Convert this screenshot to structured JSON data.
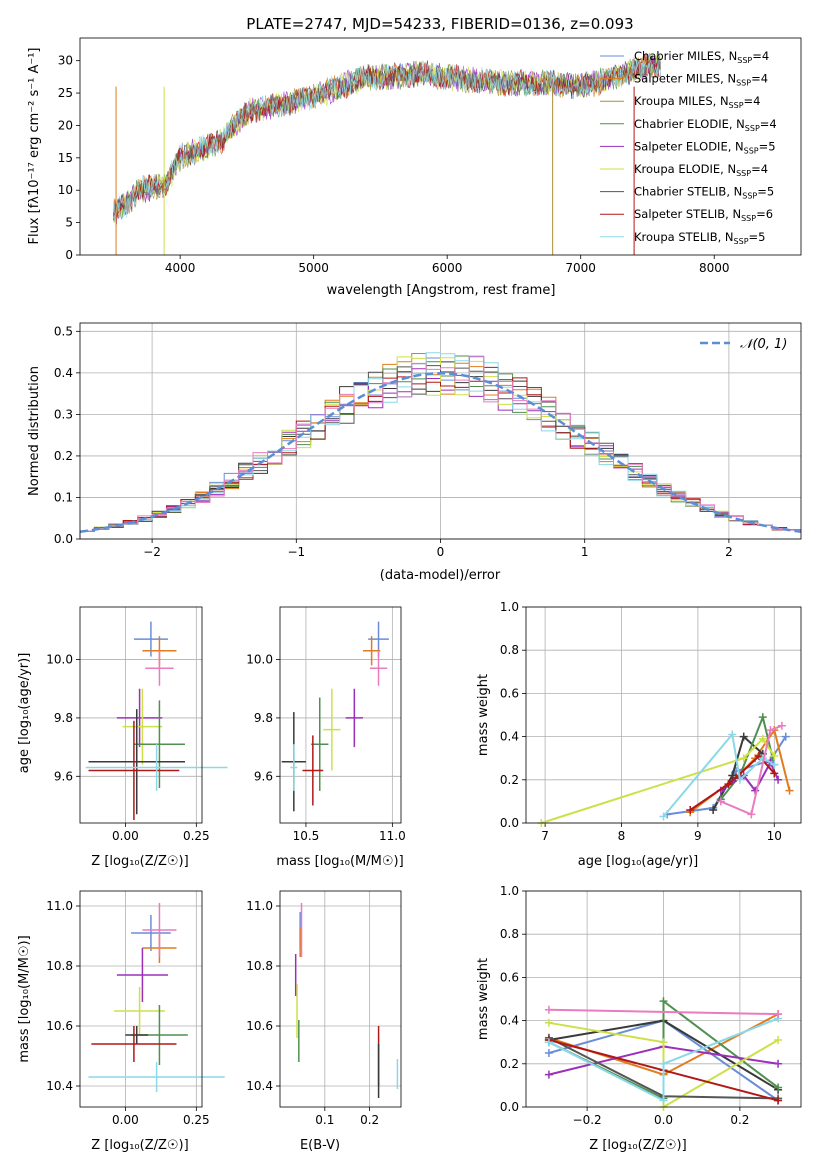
{
  "figure": {
    "title": "PLATE=2747, MJD=54233, FIBERID=0136, z=0.093"
  },
  "colors": [
    "#6a8dd8",
    "#e07b1f",
    "#3a3a3a",
    "#4f8f4f",
    "#9b30b8",
    "#cde04a",
    "#555555",
    "#b01818",
    "#8ad8e8",
    "#e87cbf"
  ],
  "legend_spectrum": [
    {
      "label": "Chabrier MILES, N",
      "sub": "SSP",
      "val": "=4",
      "color": "#6a8dd8"
    },
    {
      "label": "Salpeter MILES, N",
      "sub": "SSP",
      "val": "=4",
      "color": "#e07b1f"
    },
    {
      "label": "Kroupa MILES, N",
      "sub": "SSP",
      "val": "=4",
      "color": "#a89030"
    },
    {
      "label": "Chabrier ELODIE, N",
      "sub": "SSP",
      "val": "=4",
      "color": "#4f8f4f"
    },
    {
      "label": "Salpeter ELODIE, N",
      "sub": "SSP",
      "val": "=5",
      "color": "#9b30b8"
    },
    {
      "label": "Kroupa ELODIE, N",
      "sub": "SSP",
      "val": "=4",
      "color": "#cde04a"
    },
    {
      "label": "Chabrier STELIB, N",
      "sub": "SSP",
      "val": "=5",
      "color": "#555555"
    },
    {
      "label": "Salpeter STELIB, N",
      "sub": "SSP",
      "val": "=6",
      "color": "#b01818"
    },
    {
      "label": "Kroupa STELIB, N",
      "sub": "SSP",
      "val": "=5",
      "color": "#8ad8e8"
    }
  ],
  "chart_data": [
    {
      "id": "spectrum",
      "type": "line",
      "xlabel": "wavelength [Angstrom, rest frame]",
      "ylabel": "Flux [fλ10⁻¹⁷ erg cm⁻² s⁻¹ A⁻¹]",
      "xlim": [
        3250,
        8650
      ],
      "ylim": [
        0,
        33.5
      ],
      "xticks": [
        4000,
        5000,
        6000,
        7000,
        8000
      ],
      "yticks": [
        0,
        5,
        10,
        15,
        20,
        25,
        30
      ],
      "envelope": {
        "x": [
          3500,
          3600,
          3700,
          3800,
          3900,
          4000,
          4100,
          4200,
          4300,
          4400,
          4500,
          4600,
          4800,
          5000,
          5200,
          5400,
          5600,
          5800,
          6000,
          6200,
          6400,
          6600,
          6800,
          7000,
          7200,
          7400,
          7600
        ],
        "y": [
          6.5,
          8.0,
          10.0,
          10.5,
          11.0,
          15.0,
          16.0,
          16.5,
          17.5,
          20.0,
          22.0,
          22.5,
          23.5,
          24.5,
          26.0,
          27.5,
          27.5,
          28.0,
          27.5,
          27.0,
          26.5,
          26.5,
          26.5,
          26.0,
          27.0,
          28.5,
          29.5
        ]
      },
      "model_x_range": [
        3500,
        7600
      ],
      "glitches": [
        {
          "x": 6790,
          "color": "#a89030"
        },
        {
          "x": 7400,
          "color": "#b01818"
        },
        {
          "x": 3520,
          "color": "#e07b1f"
        },
        {
          "x": 3880,
          "color": "#cde04a"
        }
      ]
    },
    {
      "id": "residuals",
      "type": "histogram",
      "xlabel": "(data-model)/error",
      "ylabel": "Normed distribution",
      "xlim": [
        -2.5,
        2.5
      ],
      "ylim": [
        0,
        0.52
      ],
      "xticks": [
        -2,
        -1,
        0,
        1,
        2
      ],
      "yticks": [
        0.0,
        0.1,
        0.2,
        0.3,
        0.4,
        0.5
      ],
      "bins": 50,
      "reference": {
        "label": "𝒩(0, 1)",
        "mean": 0,
        "sigma": 1,
        "color": "#5a8fd8"
      }
    },
    {
      "id": "age-vs-Z",
      "type": "errorbar",
      "xlabel": "Z [log₁₀(Z/Z☉)]",
      "ylabel": "age  [log₁₀(age/yr)]",
      "xlim": [
        -0.16,
        0.27
      ],
      "ylim": [
        9.44,
        10.18
      ],
      "xticks": [
        0.0,
        0.25
      ],
      "yticks": [
        9.6,
        9.8,
        10.0
      ],
      "points": [
        {
          "x": 0.09,
          "y": 10.07,
          "xerr": 0.06,
          "yerr": 0.06,
          "color": "#6a8dd8"
        },
        {
          "x": 0.12,
          "y": 10.03,
          "xerr": 0.06,
          "yerr": 0.05,
          "color": "#e07b1f"
        },
        {
          "x": 0.12,
          "y": 9.97,
          "xerr": 0.05,
          "yerr": 0.06,
          "color": "#e87cbf"
        },
        {
          "x": 0.05,
          "y": 9.8,
          "xerr": 0.08,
          "yerr": 0.1,
          "color": "#9b30b8"
        },
        {
          "x": 0.06,
          "y": 9.77,
          "xerr": 0.07,
          "yerr": 0.13,
          "color": "#cde04a"
        },
        {
          "x": 0.12,
          "y": 9.71,
          "xerr": 0.09,
          "yerr": 0.15,
          "color": "#4f8f4f"
        },
        {
          "x": 0.04,
          "y": 9.65,
          "xerr": 0.17,
          "yerr": 0.18,
          "color": "#3a3a3a"
        },
        {
          "x": 0.03,
          "y": 9.62,
          "xerr": 0.16,
          "yerr": 0.17,
          "color": "#b01818"
        },
        {
          "x": 0.11,
          "y": 9.63,
          "xerr": 0.25,
          "yerr": 0.08,
          "color": "#8ad8e8"
        }
      ]
    },
    {
      "id": "age-vs-mass",
      "type": "errorbar",
      "xlabel": "mass [log₁₀(M/M☉)]",
      "ylabel": "",
      "xlim": [
        10.35,
        11.05
      ],
      "ylim": [
        9.44,
        10.18
      ],
      "xticks": [
        10.5,
        11.0
      ],
      "yticks": [
        9.6,
        9.8,
        10.0
      ],
      "points": [
        {
          "x": 10.92,
          "y": 10.07,
          "xerr": 0.06,
          "yerr": 0.06,
          "color": "#6a8dd8"
        },
        {
          "x": 10.88,
          "y": 10.03,
          "xerr": 0.05,
          "yerr": 0.05,
          "color": "#e07b1f"
        },
        {
          "x": 10.92,
          "y": 9.97,
          "xerr": 0.05,
          "yerr": 0.06,
          "color": "#e87cbf"
        },
        {
          "x": 10.78,
          "y": 9.8,
          "xerr": 0.05,
          "yerr": 0.1,
          "color": "#9b30b8"
        },
        {
          "x": 10.65,
          "y": 9.76,
          "xerr": 0.05,
          "yerr": 0.14,
          "color": "#cde04a"
        },
        {
          "x": 10.58,
          "y": 9.71,
          "xerr": 0.05,
          "yerr": 0.16,
          "color": "#4f8f4f"
        },
        {
          "x": 10.43,
          "y": 9.65,
          "xerr": 0.07,
          "yerr": 0.17,
          "color": "#3a3a3a"
        },
        {
          "x": 10.54,
          "y": 9.62,
          "xerr": 0.06,
          "yerr": 0.12,
          "color": "#b01818"
        },
        {
          "x": 10.43,
          "y": 9.63,
          "xerr": 0.02,
          "yerr": 0.08,
          "color": "#8ad8e8"
        }
      ]
    },
    {
      "id": "mass-weight-vs-age",
      "type": "line",
      "xlabel": "age  [log₁₀(age/yr)]",
      "ylabel": "mass weight",
      "xlim": [
        6.75,
        10.35
      ],
      "ylim": [
        0,
        1.0
      ],
      "xticks": [
        7,
        8,
        9,
        10
      ],
      "yticks": [
        0.0,
        0.2,
        0.4,
        0.6,
        0.8,
        1.0
      ],
      "series": [
        {
          "color": "#6a8dd8",
          "x": [
            8.6,
            9.2,
            9.5,
            9.95,
            10.15
          ],
          "y": [
            0.04,
            0.07,
            0.24,
            0.29,
            0.4
          ]
        },
        {
          "color": "#e07b1f",
          "x": [
            8.9,
            9.5,
            9.75,
            10.0,
            10.2
          ],
          "y": [
            0.05,
            0.21,
            0.3,
            0.43,
            0.15
          ]
        },
        {
          "color": "#3a3a3a",
          "x": [
            9.2,
            9.45,
            9.6,
            9.85
          ],
          "y": [
            0.06,
            0.22,
            0.4,
            0.32
          ]
        },
        {
          "color": "#4f8f4f",
          "x": [
            9.3,
            9.55,
            9.85,
            10.0
          ],
          "y": [
            0.11,
            0.22,
            0.49,
            0.27
          ]
        },
        {
          "color": "#9b30b8",
          "x": [
            9.3,
            9.6,
            9.75,
            9.95,
            10.05
          ],
          "y": [
            0.15,
            0.22,
            0.15,
            0.28,
            0.2
          ]
        },
        {
          "color": "#cde04a",
          "x": [
            6.95,
            9.6,
            9.85,
            10.0
          ],
          "y": [
            0.0,
            0.3,
            0.39,
            0.31
          ]
        },
        {
          "color": "#b01818",
          "x": [
            8.9,
            9.4,
            9.5,
            9.8,
            10.0
          ],
          "y": [
            0.06,
            0.18,
            0.21,
            0.31,
            0.23
          ]
        },
        {
          "color": "#8ad8e8",
          "x": [
            8.55,
            9.45,
            9.55,
            9.85,
            10.0
          ],
          "y": [
            0.03,
            0.41,
            0.2,
            0.3,
            0.27
          ]
        },
        {
          "color": "#e87cbf",
          "x": [
            9.3,
            9.7,
            9.95,
            10.1
          ],
          "y": [
            0.1,
            0.04,
            0.43,
            0.45
          ]
        }
      ]
    },
    {
      "id": "mass-vs-Z",
      "type": "errorbar",
      "xlabel": "Z [log₁₀(Z/Z☉)]",
      "ylabel": "mass [log₁₀(M/M☉)]",
      "xlim": [
        -0.16,
        0.27
      ],
      "ylim": [
        10.33,
        11.05
      ],
      "xticks": [
        0.0,
        0.25
      ],
      "yticks": [
        10.4,
        10.6,
        10.8,
        11.0
      ],
      "points": [
        {
          "x": 0.09,
          "y": 10.91,
          "xerr": 0.07,
          "yerr": 0.06,
          "color": "#6a8dd8"
        },
        {
          "x": 0.12,
          "y": 10.86,
          "xerr": 0.06,
          "yerr": 0.05,
          "color": "#e07b1f"
        },
        {
          "x": 0.12,
          "y": 10.92,
          "xerr": 0.06,
          "yerr": 0.09,
          "color": "#e87cbf"
        },
        {
          "x": 0.06,
          "y": 10.77,
          "xerr": 0.09,
          "yerr": 0.09,
          "color": "#9b30b8"
        },
        {
          "x": 0.05,
          "y": 10.65,
          "xerr": 0.09,
          "yerr": 0.08,
          "color": "#cde04a"
        },
        {
          "x": 0.12,
          "y": 10.57,
          "xerr": 0.1,
          "yerr": 0.1,
          "color": "#4f8f4f"
        },
        {
          "x": 0.04,
          "y": 10.57,
          "xerr": 0.04,
          "yerr": 0.03,
          "color": "#3a3a3a"
        },
        {
          "x": 0.03,
          "y": 10.54,
          "xerr": 0.15,
          "yerr": 0.06,
          "color": "#b01818"
        },
        {
          "x": 0.11,
          "y": 10.43,
          "xerr": 0.24,
          "yerr": 0.05,
          "color": "#8ad8e8"
        }
      ]
    },
    {
      "id": "mass-vs-EBV",
      "type": "errorbar",
      "xlabel": "E(B-V)",
      "ylabel": "",
      "xlim": [
        0.0,
        0.27
      ],
      "ylim": [
        10.33,
        11.05
      ],
      "xticks": [
        0.1,
        0.2
      ],
      "yticks": [
        10.4,
        10.6,
        10.8,
        11.0
      ],
      "points": [
        {
          "x": 0.045,
          "y": 10.92,
          "xerr": 0.001,
          "yerr": 0.06,
          "color": "#6a8dd8"
        },
        {
          "x": 0.045,
          "y": 10.88,
          "xerr": 0.001,
          "yerr": 0.05,
          "color": "#e07b1f"
        },
        {
          "x": 0.048,
          "y": 10.92,
          "xerr": 0.001,
          "yerr": 0.09,
          "color": "#e87cbf"
        },
        {
          "x": 0.035,
          "y": 10.77,
          "xerr": 0.001,
          "yerr": 0.07,
          "color": "#9b30b8"
        },
        {
          "x": 0.038,
          "y": 10.65,
          "xerr": 0.001,
          "yerr": 0.09,
          "color": "#cde04a"
        },
        {
          "x": 0.042,
          "y": 10.55,
          "xerr": 0.001,
          "yerr": 0.07,
          "color": "#4f8f4f"
        },
        {
          "x": 0.22,
          "y": 10.5,
          "xerr": 0.001,
          "yerr": 0.1,
          "color": "#b01818"
        },
        {
          "x": 0.22,
          "y": 10.45,
          "xerr": 0.001,
          "yerr": 0.09,
          "color": "#3a3a3a"
        },
        {
          "x": 0.262,
          "y": 10.44,
          "xerr": 0.001,
          "yerr": 0.05,
          "color": "#8ad8e8"
        }
      ]
    },
    {
      "id": "mass-weight-vs-Z",
      "type": "line",
      "xlabel": "Z [log₁₀(Z/Z☉)]",
      "ylabel": "mass weight",
      "xlim": [
        -0.36,
        0.36
      ],
      "ylim": [
        0,
        1.0
      ],
      "xticks": [
        -0.2,
        0.0,
        0.2
      ],
      "yticks": [
        0.0,
        0.2,
        0.4,
        0.6,
        0.8,
        1.0
      ],
      "series": [
        {
          "color": "#6a8dd8",
          "x": [
            -0.3,
            0.0,
            0.3
          ],
          "y": [
            0.25,
            0.4,
            0.03
          ]
        },
        {
          "color": "#e07b1f",
          "x": [
            -0.3,
            0.0,
            0.3
          ],
          "y": [
            0.32,
            0.15,
            0.43
          ]
        },
        {
          "color": "#3a3a3a",
          "x": [
            -0.3,
            0.0,
            0.3
          ],
          "y": [
            0.31,
            0.4,
            0.08
          ]
        },
        {
          "color": "#4f8f4f",
          "x": [
            -0.3,
            0.0,
            0.0,
            0.3
          ],
          "y": [
            0.3,
            0.04,
            0.49,
            0.09
          ]
        },
        {
          "color": "#9b30b8",
          "x": [
            -0.3,
            0.0,
            0.3
          ],
          "y": [
            0.15,
            0.28,
            0.2
          ]
        },
        {
          "color": "#cde04a",
          "x": [
            -0.3,
            0.0,
            0.0,
            0.3
          ],
          "y": [
            0.39,
            0.3,
            0.0,
            0.31
          ]
        },
        {
          "color": "#555555",
          "x": [
            -0.3,
            0.0,
            0.3
          ],
          "y": [
            0.32,
            0.05,
            0.04
          ]
        },
        {
          "color": "#b01818",
          "x": [
            -0.3,
            0.0,
            0.3
          ],
          "y": [
            0.31,
            0.17,
            0.03
          ]
        },
        {
          "color": "#8ad8e8",
          "x": [
            -0.3,
            0.0,
            0.0,
            0.3
          ],
          "y": [
            0.3,
            0.03,
            0.2,
            0.41
          ]
        },
        {
          "color": "#e87cbf",
          "x": [
            -0.3,
            0.3
          ],
          "y": [
            0.45,
            0.43
          ]
        }
      ]
    }
  ]
}
